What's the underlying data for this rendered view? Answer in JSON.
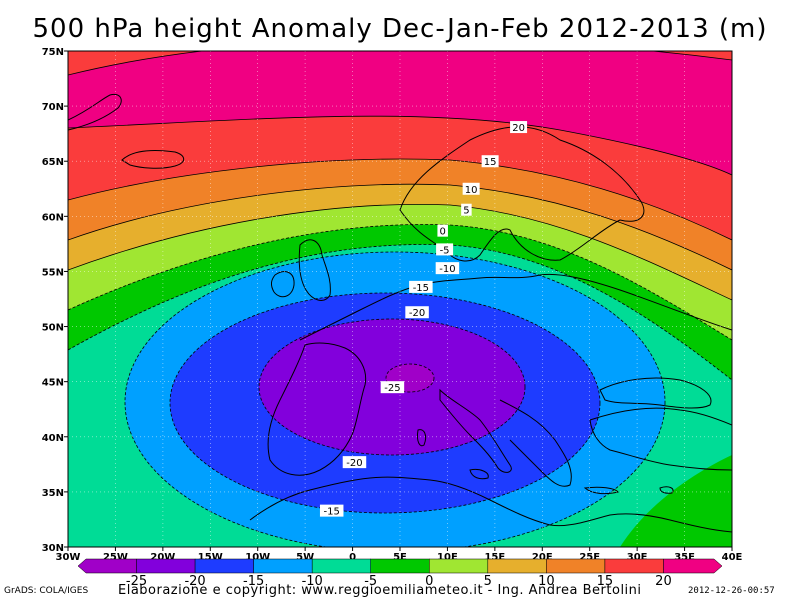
{
  "title": "500 hPa height Anomaly Dec-Jan-Feb 2012-2013 (m)",
  "footer": {
    "software": "GrADS: COLA/IGES",
    "credit": "Elaborazione e copyright: www.reggioemiliameteo.it - Ing. Andrea Bertolini",
    "timestamp": "2012-12-26-00:57"
  },
  "map": {
    "lon_range": [
      -30,
      40
    ],
    "lat_range": [
      30,
      75
    ],
    "lon_ticks": [
      "30W",
      "25W",
      "20W",
      "15W",
      "10W",
      "5W",
      "0",
      "5E",
      "10E",
      "15E",
      "20E",
      "25E",
      "30E",
      "35E",
      "40E"
    ],
    "lat_ticks": [
      "30N",
      "35N",
      "40N",
      "45N",
      "50N",
      "55N",
      "60N",
      "65N",
      "70N",
      "75N"
    ],
    "grid": "dotted",
    "anomaly_center": {
      "lon": 3,
      "lat": 45,
      "value": -25
    }
  },
  "contour_labels": [
    {
      "text": "20",
      "lon": 17.5,
      "lat": 68.1
    },
    {
      "text": "15",
      "lon": 14.5,
      "lat": 65.0
    },
    {
      "text": "10",
      "lon": 12.5,
      "lat": 62.5
    },
    {
      "text": "5",
      "lon": 12.0,
      "lat": 60.6
    },
    {
      "text": "0",
      "lon": 9.5,
      "lat": 58.7
    },
    {
      "text": "-5",
      "lon": 9.7,
      "lat": 57.0
    },
    {
      "text": "-10",
      "lon": 10.0,
      "lat": 55.3
    },
    {
      "text": "-15",
      "lon": 7.2,
      "lat": 53.6
    },
    {
      "text": "-20",
      "lon": 6.8,
      "lat": 51.3
    },
    {
      "text": "-25",
      "lon": 4.2,
      "lat": 44.5
    },
    {
      "text": "-20",
      "lon": 0.2,
      "lat": 37.7
    },
    {
      "text": "-15",
      "lon": -2.2,
      "lat": 33.3
    }
  ],
  "colorbar": {
    "colors": [
      "#a000c8",
      "#8200dc",
      "#1e3cff",
      "#00a0ff",
      "#00dc96",
      "#00c800",
      "#a0e632",
      "#e6af2d",
      "#f08228",
      "#fa3c3c",
      "#f00082"
    ],
    "labels": [
      "-25",
      "-20",
      "-15",
      "-10",
      "-5",
      "0",
      "5",
      "10",
      "15",
      "20"
    ]
  }
}
